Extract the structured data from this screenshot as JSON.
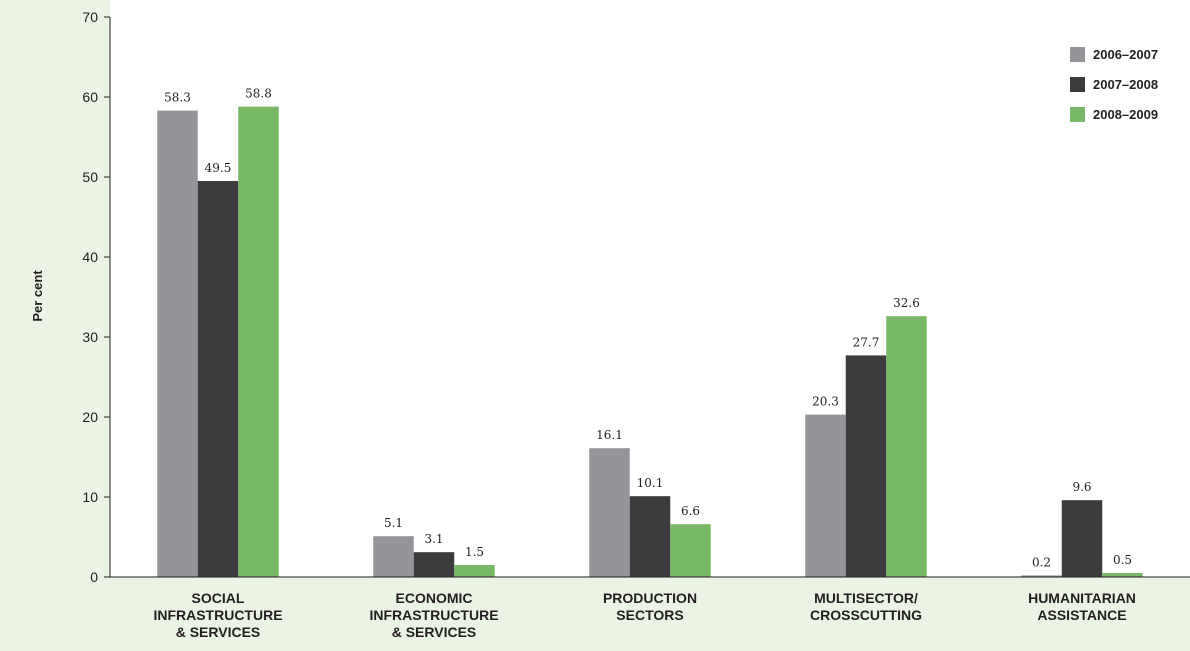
{
  "chart_data": {
    "type": "bar",
    "ylabel": "Per cent",
    "ylim": [
      0,
      70
    ],
    "yticks": [
      0,
      10,
      20,
      30,
      40,
      50,
      60,
      70
    ],
    "grid": false,
    "legend_position": "top-right",
    "categories": [
      [
        "SOCIAL",
        "INFRASTRUCTURE",
        "& SERVICES"
      ],
      [
        "ECONOMIC",
        "INFRASTRUCTURE",
        "& SERVICES"
      ],
      [
        "PRODUCTION",
        "SECTORS"
      ],
      [
        "MULTISECTOR/",
        "CROSSCUTTING"
      ],
      [
        "HUMANITARIAN",
        "ASSISTANCE"
      ]
    ],
    "series": [
      {
        "name": "2006–2007",
        "color": "#939598",
        "values": [
          58.3,
          5.1,
          16.1,
          20.3,
          0.2
        ]
      },
      {
        "name": "2007–2008",
        "color": "#3c3c3e",
        "values": [
          49.5,
          3.1,
          10.1,
          27.7,
          9.6
        ]
      },
      {
        "name": "2008–2009",
        "color": "#78b866",
        "values": [
          58.8,
          1.5,
          6.6,
          32.6,
          0.5
        ]
      }
    ]
  }
}
